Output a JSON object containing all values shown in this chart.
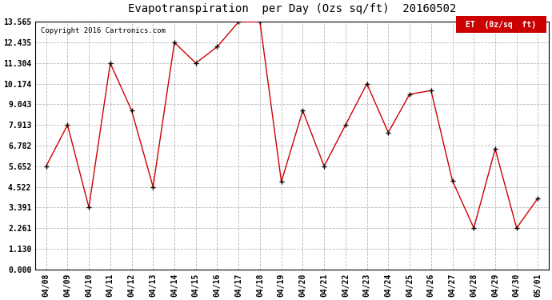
{
  "title": "Evapotranspiration  per Day (Ozs sq/ft)  20160502",
  "copyright": "Copyright 2016 Cartronics.com",
  "legend_label": "ET  (0z/sq  ft)",
  "x_labels": [
    "04/08",
    "04/09",
    "04/10",
    "04/11",
    "04/12",
    "04/13",
    "04/14",
    "04/15",
    "04/16",
    "04/17",
    "04/18",
    "04/19",
    "04/20",
    "04/21",
    "04/22",
    "04/23",
    "04/24",
    "04/25",
    "04/26",
    "04/27",
    "04/28",
    "04/29",
    "04/30",
    "05/01"
  ],
  "et_values": [
    5.652,
    7.913,
    3.391,
    11.304,
    8.7,
    4.522,
    12.435,
    11.304,
    12.2,
    13.565,
    13.565,
    4.8,
    8.7,
    5.652,
    7.913,
    10.174,
    7.5,
    9.6,
    9.8,
    4.85,
    2.261,
    6.6,
    2.261,
    3.9
  ],
  "line_color": "#cc0000",
  "marker_color": "#000000",
  "bg_color": "#ffffff",
  "grid_color": "#999999",
  "ylim_min": 0.0,
  "ylim_max": 13.565,
  "yticks": [
    0.0,
    1.13,
    2.261,
    3.391,
    4.522,
    5.652,
    6.782,
    7.913,
    9.043,
    10.174,
    11.304,
    12.435,
    13.565
  ],
  "title_fontsize": 10,
  "tick_fontsize": 7,
  "copyright_fontsize": 6.5,
  "legend_fontsize": 7
}
